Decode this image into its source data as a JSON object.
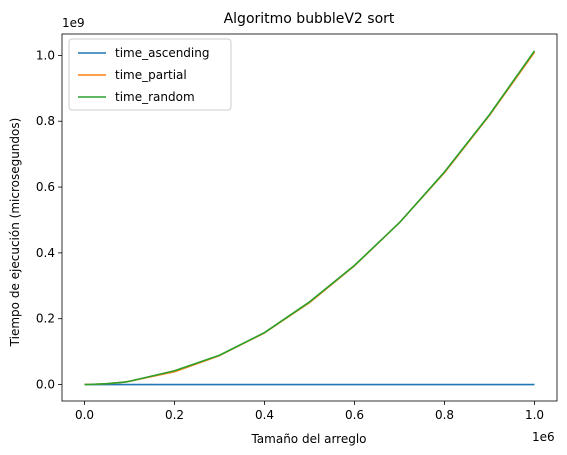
{
  "chart_data": {
    "type": "line",
    "title": "Algoritmo bubbleV2 sort",
    "xlabel": "Tamaño del arreglo",
    "ylabel": "Tiempo de ejecución (microsegundos)",
    "x_offset_label": "1e6",
    "y_offset_label": "1e9",
    "xlim": [
      -50000,
      1050000
    ],
    "ylim": [
      -50000000,
      1065000000
    ],
    "xticks": [
      0,
      200000,
      400000,
      600000,
      800000,
      1000000
    ],
    "xtick_labels": [
      "0.0",
      "0.2",
      "0.4",
      "0.6",
      "0.8",
      "1.0"
    ],
    "yticks": [
      0,
      200000000,
      400000000,
      600000000,
      800000000,
      1000000000
    ],
    "ytick_labels": [
      "0.0",
      "0.2",
      "0.4",
      "0.6",
      "0.8",
      "1.0"
    ],
    "grid": false,
    "legend_position": "top-left",
    "x": [
      0,
      10000,
      50000,
      90000,
      100000,
      200000,
      300000,
      400000,
      500000,
      600000,
      700000,
      800000,
      900000,
      1000000
    ],
    "series": [
      {
        "name": "time_ascending",
        "color": "#1f77b4",
        "values": [
          0,
          0,
          0,
          0,
          0,
          0,
          0,
          0,
          0,
          0,
          0,
          0,
          0,
          0
        ]
      },
      {
        "name": "time_partial",
        "color": "#ff7f0e",
        "values": [
          0,
          100000,
          2500000,
          7500000,
          10000000,
          39000000,
          88000000,
          157000000,
          249000000,
          361000000,
          492000000,
          644000000,
          818000000,
          1010000000
        ]
      },
      {
        "name": "time_random",
        "color": "#2ca02c",
        "values": [
          0,
          100000,
          2500000,
          7500000,
          10000000,
          42000000,
          89000000,
          158000000,
          251000000,
          362000000,
          492000000,
          646000000,
          820000000,
          1014000000
        ]
      }
    ]
  }
}
